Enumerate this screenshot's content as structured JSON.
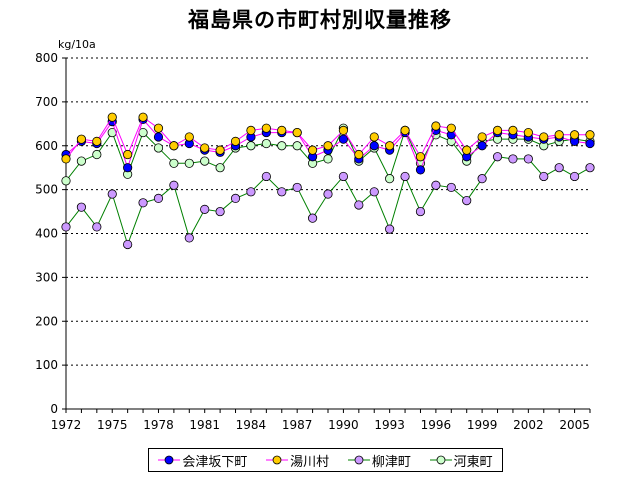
{
  "chart_data": {
    "type": "line",
    "title": "福島県の市町村別収量推移",
    "ylabel": "kg/10a",
    "xlabel": "",
    "ylim": [
      0,
      800
    ],
    "yticks": [
      0,
      100,
      200,
      300,
      400,
      500,
      600,
      700,
      800
    ],
    "xtick_labels": [
      "1972",
      "1975",
      "1978",
      "1981",
      "1984",
      "1987",
      "1990",
      "1993",
      "1996",
      "1999",
      "2002",
      "2005"
    ],
    "x": [
      1972,
      1973,
      1974,
      1975,
      1976,
      1977,
      1978,
      1979,
      1980,
      1981,
      1982,
      1983,
      1984,
      1985,
      1986,
      1987,
      1988,
      1989,
      1990,
      1991,
      1992,
      1993,
      1994,
      1995,
      1996,
      1997,
      1998,
      1999,
      2000,
      2001,
      2002,
      2003,
      2004,
      2005,
      2006
    ],
    "grid": "horizontal-dotted",
    "legend_position": "bottom",
    "series": [
      {
        "name": "会津坂下町",
        "line_color": "#ff00ff",
        "marker_fill": "#0000ff",
        "values": [
          580,
          610,
          605,
          655,
          550,
          660,
          620,
          600,
          605,
          590,
          585,
          600,
          620,
          630,
          630,
          630,
          575,
          590,
          615,
          570,
          600,
          590,
          630,
          545,
          635,
          625,
          575,
          600,
          630,
          625,
          620,
          615,
          620,
          610,
          605
        ]
      },
      {
        "name": "湯川村",
        "line_color": "#ff00ff",
        "marker_fill": "#ffcc00",
        "values": [
          570,
          615,
          610,
          665,
          580,
          665,
          640,
          600,
          620,
          595,
          590,
          610,
          635,
          640,
          635,
          630,
          590,
          600,
          635,
          580,
          620,
          600,
          635,
          575,
          645,
          640,
          590,
          620,
          635,
          635,
          630,
          620,
          625,
          625,
          625
        ]
      },
      {
        "name": "柳津町",
        "line_color": "#008000",
        "marker_fill": "#cc99ff",
        "values": [
          415,
          460,
          415,
          490,
          375,
          470,
          480,
          510,
          390,
          455,
          450,
          480,
          495,
          530,
          495,
          505,
          435,
          490,
          530,
          465,
          495,
          410,
          530,
          450,
          510,
          505,
          475,
          525,
          575,
          570,
          570,
          530,
          550,
          530,
          550
        ]
      },
      {
        "name": "河東町",
        "line_color": "#008000",
        "marker_fill": "#ccffcc",
        "values": [
          520,
          565,
          580,
          630,
          535,
          630,
          595,
          560,
          560,
          565,
          550,
          595,
          600,
          605,
          600,
          600,
          560,
          570,
          640,
          565,
          595,
          525,
          635,
          560,
          625,
          610,
          565,
          610,
          615,
          615,
          615,
          600,
          610,
          615,
          610
        ]
      }
    ]
  }
}
